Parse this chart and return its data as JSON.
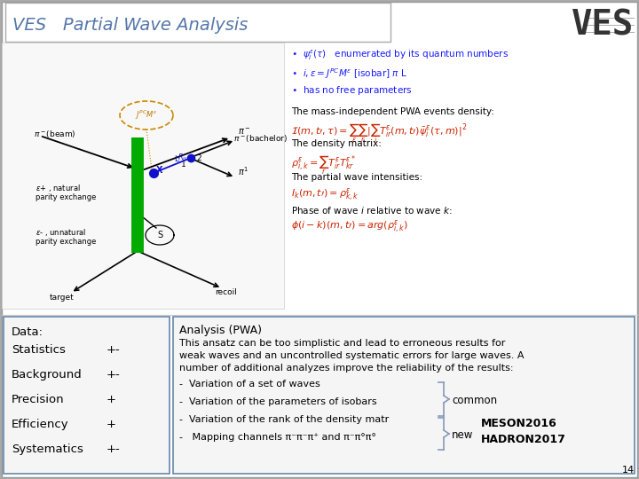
{
  "title": "VES   Partial Wave Analysis",
  "title_color": "#5577aa",
  "title_fontsize": 14,
  "ves_logo": "VES",
  "bg_color": "#ffffff",
  "outer_bg": "#aaaaaa",
  "left_box_title": "Data:",
  "left_box_rows": [
    [
      "Statistics",
      "+-"
    ],
    [
      "Background",
      "+-"
    ],
    [
      "Precision",
      "+"
    ],
    [
      "Efficiency",
      "+"
    ],
    [
      "Systematics",
      "+-"
    ]
  ],
  "right_box_title": "Analysis (PWA)",
  "right_box_line1": "This ansatz can be too simplistic and lead to erroneous results for",
  "right_box_line2": "weak waves and an uncontrolled systematic errors for large waves. A",
  "right_box_line3": "number of additional analyzes improve the reliability of the results:",
  "right_box_bullets": [
    "-  Variation of a set of waves",
    "-  Variation of the parameters of isobars",
    "-  Variation of the rank of the density matr",
    "-   Mapping channels π⁻π⁻π⁺ and π⁻π°π°"
  ],
  "common_label": "common",
  "new_label": "new",
  "conf_label1": "MESON2016",
  "conf_label2": "HADRON2017",
  "page_num": "14",
  "box_edge_color": "#6688aa",
  "bullet_color": "#1a1aff",
  "eq_color": "#cc2200",
  "text_color": "#111111"
}
